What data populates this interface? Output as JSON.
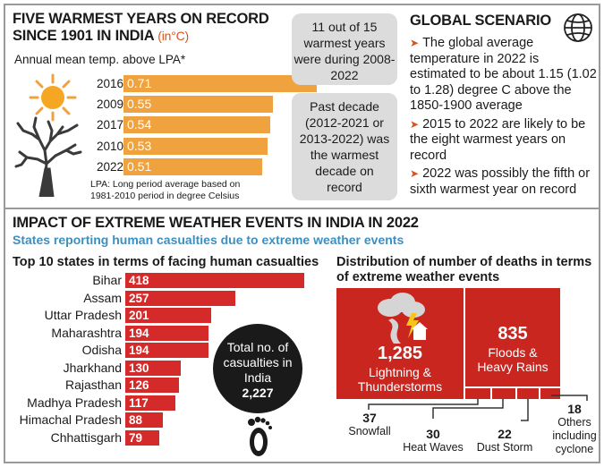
{
  "warmest": {
    "title_line1": "FIVE WARMEST YEARS ON RECORD",
    "title_line2": "SINCE 1901 IN INDIA",
    "unit": "(in°C)",
    "subtitle": "Annual mean temp. above LPA*",
    "note": "LPA: Long period average based on 1981-2010 period in degree Celsius",
    "bars": [
      {
        "year": "2016",
        "value": 0.71,
        "label": "0.71"
      },
      {
        "year": "2009",
        "value": 0.55,
        "label": "0.55"
      },
      {
        "year": "2017",
        "value": 0.54,
        "label": "0.54"
      },
      {
        "year": "2010",
        "value": 0.53,
        "label": "0.53"
      },
      {
        "year": "2022",
        "value": 0.51,
        "label": "0.51"
      }
    ]
  },
  "callouts": {
    "box1": "11 out of 15 warmest years were during 2008-2022",
    "box2": "Past decade (2012-2021 or 2013-2022) was the warmest decade on record"
  },
  "global": {
    "title": "GLOBAL SCENARIO",
    "points": [
      "The global average temperature in 2022 is estimated to be about 1.15 (1.02 to 1.28) degree C above the 1850-1900 average",
      "2015 to 2022 are likely to be the eight warmest years on record",
      "2022 was possibly the fifth or sixth warmest year on record"
    ]
  },
  "impact": {
    "title": "IMPACT OF EXTREME WEATHER EVENTS IN INDIA IN 2022",
    "subtitle": "States reporting human casualties due to extreme weather events",
    "states_title": "Top 10 states in terms of facing human casualties",
    "states": [
      {
        "name": "Bihar",
        "value": 418,
        "label": "418"
      },
      {
        "name": "Assam",
        "value": 257,
        "label": "257"
      },
      {
        "name": "Uttar Pradesh",
        "value": 201,
        "label": "201"
      },
      {
        "name": "Maharashtra",
        "value": 194,
        "label": "194"
      },
      {
        "name": "Odisha",
        "value": 194,
        "label": "194"
      },
      {
        "name": "Jharkhand",
        "value": 130,
        "label": "130"
      },
      {
        "name": "Rajasthan",
        "value": 126,
        "label": "126"
      },
      {
        "name": "Madhya Pradesh",
        "value": 117,
        "label": "117"
      },
      {
        "name": "Himachal Pradesh",
        "value": 88,
        "label": "88"
      },
      {
        "name": "Chhattisgarh",
        "value": 79,
        "label": "79"
      }
    ],
    "total_line1": "Total no. of",
    "total_line2": "casualties in",
    "total_line3": "India",
    "total_value": "2,227"
  },
  "deaths": {
    "title_line1": "Distribution of number of deaths in terms",
    "title_line2": "of extreme weather events",
    "lightning_value": "1,285",
    "lightning_label1": "Lightning &",
    "lightning_label2": "Thunderstorms",
    "floods_value": "835",
    "floods_label1": "Floods &",
    "floods_label2": "Heavy Rains",
    "snowfall_value": "37",
    "snowfall_label": "Snowfall",
    "heat_value": "30",
    "heat_label": "Heat Waves",
    "dust_value": "22",
    "dust_label": "Dust Storm",
    "others_value": "18",
    "others_label1": "Others",
    "others_label2": "including",
    "others_label3": "cyclone"
  },
  "chart_data": [
    {
      "type": "bar",
      "title": "Five warmest years on record since 1901 in India (in°C)",
      "ylabel": "Annual mean temp. above LPA*",
      "categories": [
        "2016",
        "2009",
        "2017",
        "2010",
        "2022"
      ],
      "values": [
        0.71,
        0.55,
        0.54,
        0.53,
        0.51
      ]
    },
    {
      "type": "bar",
      "title": "Top 10 states in terms of facing human casualties",
      "categories": [
        "Bihar",
        "Assam",
        "Uttar Pradesh",
        "Maharashtra",
        "Odisha",
        "Jharkhand",
        "Rajasthan",
        "Madhya Pradesh",
        "Himachal Pradesh",
        "Chhattisgarh"
      ],
      "values": [
        418,
        257,
        201,
        194,
        194,
        130,
        126,
        117,
        88,
        79
      ]
    },
    {
      "type": "treemap",
      "title": "Distribution of number of deaths in terms of extreme weather events",
      "categories": [
        "Lightning & Thunderstorms",
        "Floods & Heavy Rains",
        "Snowfall",
        "Heat Waves",
        "Dust Storm",
        "Others including cyclone"
      ],
      "values": [
        1285,
        835,
        37,
        30,
        22,
        18
      ]
    }
  ],
  "colors": {
    "orange_bar": "#f0a23f",
    "red_bar": "#d42a2a",
    "accent": "#d9531e",
    "blue": "#3c8fbf"
  }
}
